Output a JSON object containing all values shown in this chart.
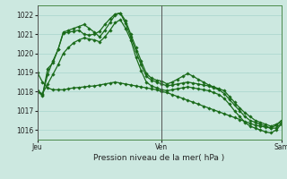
{
  "background_color": "#cce8e0",
  "grid_color": "#a8d4cc",
  "line_color": "#1a6b1a",
  "title": "Pression niveau de la mer( hPa )",
  "xtick_labels": [
    "Jeu",
    "Ven",
    "Sam"
  ],
  "xtick_positions": [
    0,
    24,
    47
  ],
  "ylim": [
    1015.5,
    1022.5
  ],
  "yticks": [
    1016,
    1017,
    1018,
    1019,
    1020,
    1021,
    1022
  ],
  "vline_color": "#555555",
  "series": [
    [
      1018.0,
      1017.8,
      1019.2,
      1019.5,
      1020.2,
      1021.05,
      1021.1,
      1021.15,
      1021.2,
      1021.0,
      1020.95,
      1021.0,
      1021.15,
      1021.5,
      1021.8,
      1022.05,
      1022.1,
      1021.7,
      1021.0,
      1020.3,
      1019.6,
      1018.95,
      1018.7,
      1018.6,
      1018.55,
      1018.4,
      1018.5,
      1018.65,
      1018.8,
      1018.95,
      1018.8,
      1018.65,
      1018.5,
      1018.35,
      1018.25,
      1018.15,
      1018.05,
      1017.75,
      1017.45,
      1017.15,
      1016.9,
      1016.7,
      1016.5,
      1016.4,
      1016.3,
      1016.2,
      1016.3,
      1016.4
    ],
    [
      1018.05,
      1017.85,
      1018.9,
      1019.6,
      1020.2,
      1021.1,
      1021.2,
      1021.3,
      1021.4,
      1021.5,
      1021.3,
      1021.1,
      1020.85,
      1021.2,
      1021.6,
      1022.0,
      1022.1,
      1021.55,
      1020.85,
      1020.1,
      1019.4,
      1018.8,
      1018.6,
      1018.5,
      1018.4,
      1018.3,
      1018.35,
      1018.4,
      1018.45,
      1018.5,
      1018.45,
      1018.4,
      1018.35,
      1018.3,
      1018.2,
      1018.1,
      1017.9,
      1017.6,
      1017.3,
      1017.0,
      1016.7,
      1016.5,
      1016.4,
      1016.3,
      1016.2,
      1016.1,
      1016.25,
      1016.5
    ],
    [
      1018.0,
      1017.9,
      1018.4,
      1018.9,
      1019.4,
      1020.0,
      1020.3,
      1020.55,
      1020.7,
      1020.8,
      1020.75,
      1020.7,
      1020.6,
      1020.85,
      1021.2,
      1021.6,
      1021.75,
      1021.3,
      1020.7,
      1019.8,
      1019.1,
      1018.5,
      1018.3,
      1018.2,
      1018.1,
      1018.05,
      1018.1,
      1018.15,
      1018.2,
      1018.25,
      1018.2,
      1018.15,
      1018.1,
      1018.05,
      1017.95,
      1017.85,
      1017.65,
      1017.35,
      1017.0,
      1016.7,
      1016.4,
      1016.2,
      1016.1,
      1016.0,
      1015.9,
      1015.85,
      1016.0,
      1016.3
    ],
    [
      1019.0,
      1018.5,
      1018.2,
      1018.1,
      1018.1,
      1018.1,
      1018.15,
      1018.2,
      1018.22,
      1018.25,
      1018.28,
      1018.3,
      1018.35,
      1018.4,
      1018.45,
      1018.5,
      1018.45,
      1018.4,
      1018.35,
      1018.3,
      1018.25,
      1018.2,
      1018.15,
      1018.1,
      1018.0,
      1017.95,
      1017.85,
      1017.75,
      1017.65,
      1017.55,
      1017.45,
      1017.35,
      1017.25,
      1017.15,
      1017.05,
      1016.95,
      1016.85,
      1016.75,
      1016.65,
      1016.55,
      1016.45,
      1016.35,
      1016.25,
      1016.2,
      1016.15,
      1016.1,
      1016.1,
      1016.35
    ]
  ],
  "xlim": [
    0,
    47
  ]
}
